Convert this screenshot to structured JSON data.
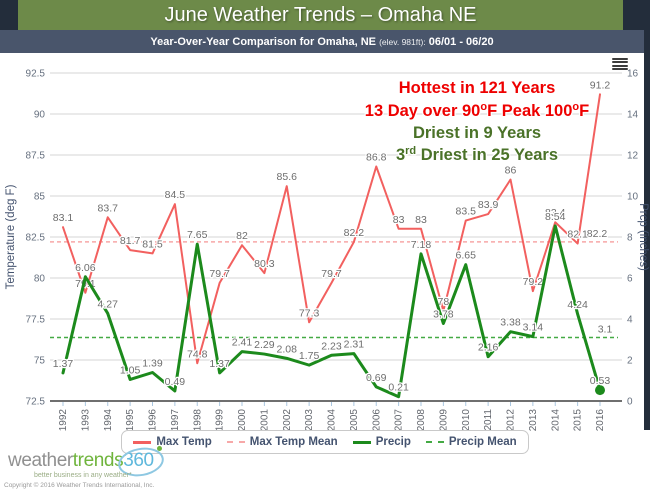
{
  "header": {
    "title": "June Weather Trends – Omaha NE",
    "subtitle_pre": "Year-Over-Year Comparison for Omaha, NE ",
    "subtitle_elev": "(elev. 981ft):",
    "subtitle_range": " 06/01 - 06/20"
  },
  "colors": {
    "header_green": "#6d8a49",
    "header_navy": "#232d3b",
    "subtitle_bg": "#49556b",
    "max_temp": "#f2605f",
    "max_temp_mean": "#f7a8a8",
    "precip": "#1c8a1c",
    "precip_mean": "#44aa44",
    "annotation_red": "#ee0000",
    "annotation_green": "#4a7228"
  },
  "chart_data": {
    "type": "line",
    "title": "June Weather Trends – Omaha NE",
    "x": [
      1992,
      1993,
      1994,
      1995,
      1996,
      1997,
      1998,
      1999,
      2000,
      2001,
      2002,
      2003,
      2004,
      2005,
      2006,
      2007,
      2008,
      2009,
      2010,
      2011,
      2012,
      2013,
      2014,
      2015,
      2016
    ],
    "series": [
      {
        "name": "Max Temp",
        "axis": "temperature",
        "color": "#f2605f",
        "dash": false,
        "values": [
          83.1,
          79.1,
          83.7,
          81.7,
          81.5,
          84.5,
          74.8,
          79.7,
          82,
          80.3,
          85.6,
          77.3,
          79.7,
          82.2,
          86.8,
          83,
          83,
          78,
          83.5,
          83.9,
          86,
          79.2,
          83.4,
          82.1,
          91.2
        ]
      },
      {
        "name": "Max Temp Mean",
        "axis": "temperature",
        "color": "#f7a8a8",
        "dash": true,
        "mean": 82.2
      },
      {
        "name": "Precip",
        "axis": "precip",
        "color": "#1c8a1c",
        "dash": false,
        "last_point_marker": true,
        "values": [
          1.37,
          6.06,
          4.27,
          1.05,
          1.39,
          0.49,
          7.65,
          1.37,
          2.41,
          2.29,
          2.08,
          1.75,
          2.23,
          2.31,
          0.69,
          0.21,
          7.18,
          3.78,
          6.65,
          2.16,
          3.38,
          3.14,
          8.54,
          4.24,
          0.53
        ]
      },
      {
        "name": "Precip Mean",
        "axis": "precip",
        "color": "#44aa44",
        "dash": true,
        "mean": 3.1
      }
    ],
    "temperature_axis": {
      "title": "Temperature (deg F)",
      "min": 72.5,
      "max": 92.5,
      "ticks": [
        "72.5",
        "75",
        "77.5",
        "80",
        "82.5",
        "85",
        "87.5",
        "90",
        "92.5"
      ]
    },
    "precip_axis": {
      "title": "Prcp (inches)",
      "min": 0,
      "max": 16,
      "ticks": [
        "0",
        "2",
        "4",
        "6",
        "8",
        "10",
        "12",
        "14",
        "16"
      ]
    },
    "grid": true,
    "legend_position": "bottom",
    "annotations": [
      {
        "color": "red",
        "parts": [
          {
            "t": "Hottest in 121 Years"
          }
        ]
      },
      {
        "color": "red",
        "parts": [
          {
            "t": "13 Day over 90"
          },
          {
            "t": "o",
            "sup": true
          },
          {
            "t": "F Peak 100"
          },
          {
            "t": "o",
            "sup": true
          },
          {
            "t": "F"
          }
        ]
      },
      {
        "color": "green",
        "parts": [
          {
            "t": "Driest in 9 Years"
          }
        ]
      },
      {
        "color": "green",
        "parts": [
          {
            "t": "3"
          },
          {
            "t": "rd",
            "sup": true
          },
          {
            "t": " Driest in 25 Years"
          }
        ]
      }
    ]
  },
  "legend": {
    "items": [
      {
        "label": "Max Temp",
        "color": "#f2605f",
        "dash": false
      },
      {
        "label": "Max Temp Mean",
        "color": "#f7a8a8",
        "dash": true
      },
      {
        "label": "Precip",
        "color": "#1c8a1c",
        "dash": false
      },
      {
        "label": "Precip Mean",
        "color": "#44aa44",
        "dash": true
      }
    ]
  },
  "footer": {
    "logo_weather": "weather",
    "logo_trends": "trends",
    "logo_360": "360",
    "tagline": "better business in any weather*",
    "copyright": "Copyright © 2016  Weather Trends International, Inc."
  }
}
